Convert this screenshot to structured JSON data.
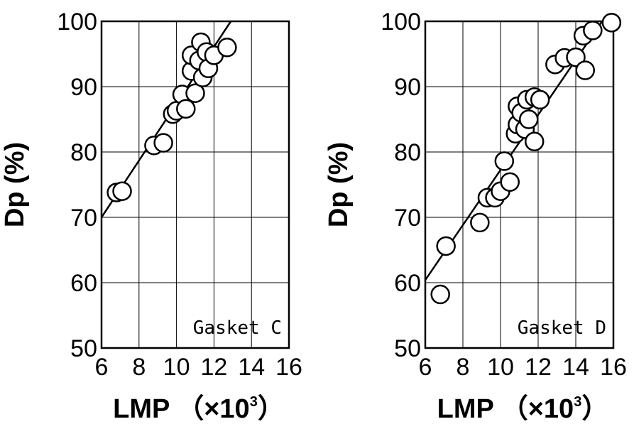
{
  "chart_data": [
    {
      "type": "scatter",
      "xlabel_main": "LMP",
      "xlabel_unit": "（×10",
      "xlabel_exp": "3",
      "xlabel_close": "）",
      "ylabel": "Dp (%)",
      "xlim": [
        6,
        16
      ],
      "ylim": [
        50,
        100
      ],
      "xticks": [
        "6",
        "8",
        "10",
        "12",
        "14",
        "16"
      ],
      "yticks": [
        "50",
        "60",
        "70",
        "80",
        "90",
        "100"
      ],
      "grid": true,
      "annotation": "Gasket C",
      "fit_line": {
        "x": [
          6.0,
          12.9
        ],
        "y": [
          70.0,
          100.0
        ]
      },
      "points": [
        {
          "x": 6.8,
          "y": 73.8
        },
        {
          "x": 7.1,
          "y": 74.0
        },
        {
          "x": 8.8,
          "y": 81.0
        },
        {
          "x": 9.3,
          "y": 81.4
        },
        {
          "x": 9.8,
          "y": 85.8
        },
        {
          "x": 10.0,
          "y": 86.3
        },
        {
          "x": 10.3,
          "y": 88.8
        },
        {
          "x": 10.5,
          "y": 86.6
        },
        {
          "x": 10.8,
          "y": 92.4
        },
        {
          "x": 10.8,
          "y": 94.8
        },
        {
          "x": 11.0,
          "y": 89.0
        },
        {
          "x": 11.2,
          "y": 94.0
        },
        {
          "x": 11.3,
          "y": 96.8
        },
        {
          "x": 11.4,
          "y": 91.4
        },
        {
          "x": 11.6,
          "y": 95.3
        },
        {
          "x": 11.7,
          "y": 92.8
        },
        {
          "x": 12.0,
          "y": 94.8
        },
        {
          "x": 12.7,
          "y": 96.0
        }
      ]
    },
    {
      "type": "scatter",
      "xlabel_main": "LMP",
      "xlabel_unit": "（×10",
      "xlabel_exp": "3",
      "xlabel_close": "）",
      "ylabel": "Dp (%)",
      "xlim": [
        6,
        16
      ],
      "ylim": [
        50,
        100
      ],
      "xticks": [
        "6",
        "8",
        "10",
        "12",
        "14",
        "16"
      ],
      "yticks": [
        "50",
        "60",
        "70",
        "80",
        "90",
        "100"
      ],
      "grid": true,
      "annotation": "Gasket D",
      "fit_line": {
        "x": [
          6.0,
          15.4
        ],
        "y": [
          60.4,
          100.0
        ]
      },
      "points": [
        {
          "x": 6.8,
          "y": 58.2
        },
        {
          "x": 7.1,
          "y": 65.6
        },
        {
          "x": 8.9,
          "y": 69.2
        },
        {
          "x": 9.3,
          "y": 73.0
        },
        {
          "x": 9.7,
          "y": 73.0
        },
        {
          "x": 10.0,
          "y": 74.0
        },
        {
          "x": 10.2,
          "y": 78.6
        },
        {
          "x": 10.5,
          "y": 75.4
        },
        {
          "x": 10.8,
          "y": 82.8
        },
        {
          "x": 10.9,
          "y": 84.2
        },
        {
          "x": 10.9,
          "y": 87.0
        },
        {
          "x": 11.1,
          "y": 86.0
        },
        {
          "x": 11.3,
          "y": 83.5
        },
        {
          "x": 11.4,
          "y": 88.0
        },
        {
          "x": 11.5,
          "y": 85.0
        },
        {
          "x": 11.8,
          "y": 88.4
        },
        {
          "x": 11.8,
          "y": 81.6
        },
        {
          "x": 12.1,
          "y": 88.0
        },
        {
          "x": 12.9,
          "y": 93.4
        },
        {
          "x": 13.4,
          "y": 94.4
        },
        {
          "x": 14.0,
          "y": 94.5
        },
        {
          "x": 14.4,
          "y": 97.8
        },
        {
          "x": 14.5,
          "y": 92.5
        },
        {
          "x": 14.9,
          "y": 98.6
        },
        {
          "x": 15.9,
          "y": 99.8
        }
      ]
    }
  ]
}
